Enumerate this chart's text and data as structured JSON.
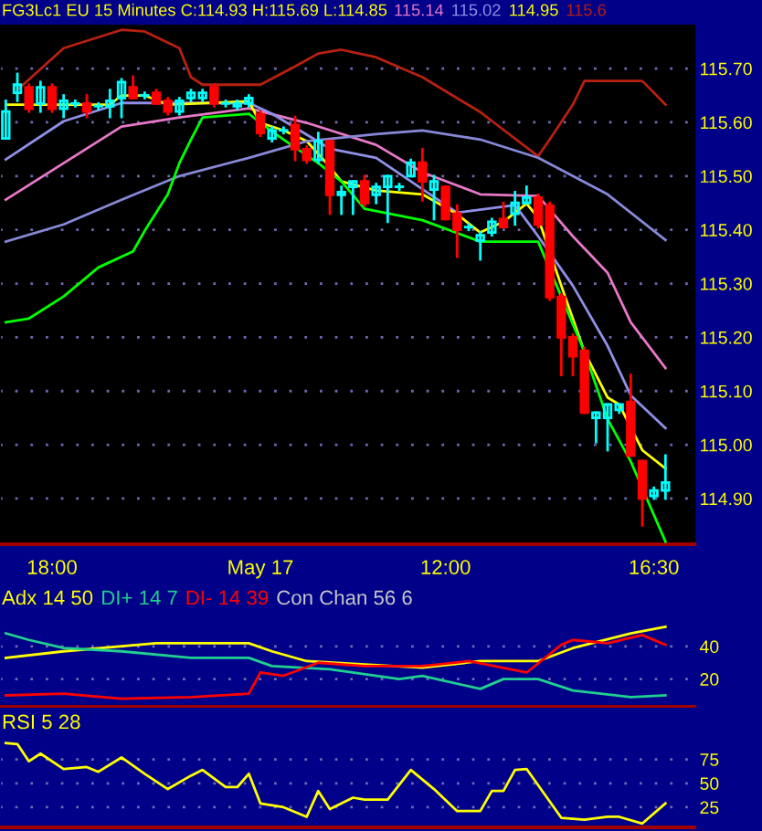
{
  "chart_data": [
    {
      "type": "candlestick",
      "title": "FG3Lc1 EU 15 Minutes C:114.93 H:115.69 L:114.85",
      "categories": [
        null,
        null,
        null,
        null,
        "18:00",
        null,
        null,
        null,
        null,
        null,
        null,
        null,
        null,
        null,
        null,
        null,
        null,
        null,
        null,
        null,
        null,
        null,
        "May 17",
        null,
        null,
        null,
        null,
        null,
        null,
        null,
        null,
        null,
        null,
        null,
        null,
        null,
        null,
        null,
        "12:00",
        null,
        null,
        null,
        null,
        null,
        null,
        null,
        null,
        null,
        null,
        null,
        null,
        null,
        null,
        null,
        null,
        null,
        "16:30",
        null
      ],
      "ohlc": [
        [
          115.57,
          115.64,
          115.57,
          115.62
        ],
        [
          115.655,
          115.69,
          115.64,
          115.67
        ],
        [
          115.665,
          115.67,
          115.62,
          115.625
        ],
        [
          115.635,
          115.675,
          115.62,
          115.665
        ],
        [
          115.665,
          115.67,
          115.62,
          115.625
        ],
        [
          115.625,
          115.65,
          115.61,
          115.64
        ],
        [
          115.635,
          115.64,
          115.63,
          115.635
        ],
        [
          115.635,
          115.65,
          115.61,
          115.62
        ],
        [
          115.63,
          115.635,
          115.625,
          115.63
        ],
        [
          115.63,
          115.66,
          115.61,
          115.64
        ],
        [
          115.645,
          115.68,
          115.61,
          115.675
        ],
        [
          115.665,
          115.685,
          115.645,
          115.645
        ],
        [
          115.65,
          115.655,
          115.645,
          115.65
        ],
        [
          115.655,
          115.66,
          115.635,
          115.635
        ],
        [
          115.64,
          115.645,
          115.615,
          115.62
        ],
        [
          115.62,
          115.645,
          115.615,
          115.64
        ],
        [
          115.645,
          115.66,
          115.64,
          115.655
        ],
        [
          115.645,
          115.66,
          115.64,
          115.655
        ],
        [
          115.665,
          115.67,
          115.63,
          115.635
        ],
        [
          115.635,
          115.64,
          115.63,
          115.635
        ],
        [
          115.63,
          115.64,
          115.625,
          115.635
        ],
        [
          115.635,
          115.65,
          115.63,
          115.645
        ],
        [
          115.615,
          115.62,
          115.575,
          115.58
        ],
        [
          115.57,
          115.59,
          115.565,
          115.585
        ],
        [
          115.585,
          115.59,
          115.58,
          115.585
        ],
        [
          115.595,
          115.61,
          115.53,
          115.55
        ],
        [
          115.55,
          115.555,
          115.525,
          115.53
        ],
        [
          115.53,
          115.58,
          115.525,
          115.565
        ],
        [
          115.565,
          115.565,
          115.43,
          115.465
        ],
        [
          115.465,
          115.48,
          115.43,
          115.47
        ],
        [
          115.48,
          115.49,
          115.43,
          115.49
        ],
        [
          115.49,
          115.5,
          115.445,
          115.45
        ],
        [
          115.465,
          115.485,
          115.45,
          115.48
        ],
        [
          115.48,
          115.5,
          115.415,
          115.5
        ],
        [
          115.48,
          115.485,
          115.475,
          115.48
        ],
        [
          115.5,
          115.53,
          115.5,
          115.525
        ],
        [
          115.525,
          115.55,
          115.455,
          115.49
        ],
        [
          115.475,
          115.5,
          115.42,
          115.49
        ],
        [
          115.48,
          115.48,
          115.42,
          115.42
        ],
        [
          115.43,
          115.445,
          115.35,
          115.4
        ],
        [
          115.405,
          115.41,
          115.4,
          115.405
        ],
        [
          115.38,
          115.395,
          115.345,
          115.39
        ],
        [
          115.395,
          115.42,
          115.39,
          115.415
        ],
        [
          115.42,
          115.45,
          115.405,
          115.405
        ],
        [
          115.43,
          115.47,
          115.41,
          115.45
        ],
        [
          115.45,
          115.48,
          115.45,
          115.46
        ],
        [
          115.46,
          115.465,
          115.405,
          115.41
        ],
        [
          115.445,
          115.45,
          115.27,
          115.275
        ],
        [
          115.275,
          115.28,
          115.13,
          115.2
        ],
        [
          115.2,
          115.205,
          115.13,
          115.165
        ],
        [
          115.175,
          115.18,
          115.06,
          115.06
        ],
        [
          115.05,
          115.06,
          115.005,
          115.06
        ],
        [
          115.05,
          115.075,
          114.99,
          115.075
        ],
        [
          115.065,
          115.075,
          115.06,
          115.075
        ],
        [
          115.08,
          115.13,
          114.98,
          114.98
        ],
        [
          114.97,
          114.97,
          114.85,
          114.9
        ],
        [
          114.905,
          114.92,
          114.9,
          114.915
        ],
        [
          114.915,
          114.98,
          114.9,
          114.93
        ]
      ],
      "colors": [
        "#00ffff",
        "#00ffff",
        "#ff0000",
        "#00ffff",
        "#ff0000",
        "#00ffff",
        "#00ffff",
        "#ff0000",
        "#00ffff",
        "#00ffff",
        "#00ffff",
        "#ff0000",
        "#00ffff",
        "#ff0000",
        "#ff0000",
        "#00ffff",
        "#00ffff",
        "#00ffff",
        "#ff0000",
        "#00ffff",
        "#00ffff",
        "#00ffff",
        "#ff0000",
        "#00ffff",
        "#00ffff",
        "#ff0000",
        "#ff0000",
        "#00ffff",
        "#ff0000",
        "#00ffff",
        "#00ffff",
        "#ff0000",
        "#00ffff",
        "#00ffff",
        "#00ffff",
        "#00ffff",
        "#ff0000",
        "#00ffff",
        "#ff0000",
        "#ff0000",
        "#00ffff",
        "#00ffff",
        "#00ffff",
        "#ff0000",
        "#00ffff",
        "#00ffff",
        "#ff0000",
        "#ff0000",
        "#ff0000",
        "#ff0000",
        "#ff0000",
        "#00ffff",
        "#00ffff",
        "#00ffff",
        "#ff0000",
        "#ff0000",
        "#00ffff",
        "#00ffff"
      ],
      "series": [
        {
          "type": "line",
          "name": "115.14",
          "color": "#e878c8",
          "values": [
            115.456,
            null,
            null,
            null,
            null,
            115.524,
            null,
            null,
            115.565,
            null,
            115.592,
            null,
            null,
            null,
            null,
            115.609,
            null,
            null,
            null,
            null,
            null,
            115.626,
            null,
            null,
            null,
            null,
            115.599,
            null,
            null,
            null,
            null,
            null,
            115.558,
            null,
            null,
            null,
            115.507,
            null,
            null,
            null,
            null,
            115.466,
            null,
            null,
            null,
            null,
            115.463,
            null,
            null,
            115.388,
            null,
            null,
            115.32,
            null,
            115.228,
            null,
            null,
            115.143
          ]
        },
        {
          "type": "line",
          "name": "115.02",
          "color": "#9090e8",
          "values": [
            115.531,
            null,
            null,
            null,
            null,
            115.602,
            null,
            null,
            null,
            null,
            115.636,
            null,
            null,
            null,
            null,
            null,
            null,
            null,
            null,
            null,
            null,
            115.636,
            null,
            115.616,
            null,
            null,
            null,
            null,
            115.551,
            null,
            null,
            null,
            115.534,
            null,
            null,
            null,
            null,
            null,
            null,
            115.432,
            null,
            null,
            null,
            null,
            115.446,
            null,
            115.388,
            null,
            null,
            115.296,
            null,
            null,
            115.184,
            null,
            115.092,
            null,
            null,
            115.031
          ]
        },
        {
          "type": "line",
          "name": "114.95",
          "color": "#ffff00",
          "values": [
            115.633,
            null,
            null,
            null,
            null,
            115.633,
            null,
            null,
            null,
            115.633,
            115.65,
            null,
            115.65,
            null,
            115.633,
            null,
            null,
            null,
            null,
            null,
            null,
            115.639,
            115.599,
            null,
            115.585,
            null,
            115.565,
            null,
            115.517,
            115.49,
            null,
            null,
            115.473,
            null,
            null,
            null,
            115.466,
            null,
            null,
            115.429,
            null,
            115.395,
            null,
            115.415,
            null,
            115.449,
            115.422,
            null,
            115.296,
            null,
            115.173,
            null,
            115.088,
            115.075,
            null,
            114.99,
            null,
            114.956
          ]
        },
        {
          "type": "line",
          "name": "115.6",
          "color": "#b82010",
          "values": [
            null,
            115.66,
            null,
            null,
            null,
            115.738,
            null,
            null,
            null,
            null,
            115.772,
            null,
            115.769,
            null,
            null,
            115.738,
            115.684,
            115.67,
            null,
            null,
            null,
            null,
            115.67,
            null,
            null,
            115.704,
            null,
            115.728,
            null,
            115.735,
            null,
            null,
            115.721,
            null,
            null,
            null,
            115.684,
            null,
            null,
            null,
            null,
            115.619,
            null,
            null,
            null,
            null,
            115.537,
            115.568,
            null,
            115.633,
            115.677,
            null,
            null,
            null,
            null,
            115.677,
            null,
            115.633
          ]
        },
        {
          "type": "line",
          "color": "#8888d8",
          "values": [
            115.378,
            null,
            null,
            null,
            null,
            115.41,
            null,
            null,
            null,
            null,
            115.456,
            null,
            null,
            null,
            null,
            115.5,
            null,
            null,
            null,
            null,
            null,
            115.534,
            null,
            null,
            null,
            null,
            115.565,
            null,
            null,
            null,
            null,
            null,
            115.578,
            null,
            null,
            null,
            115.585,
            null,
            null,
            null,
            null,
            115.568,
            null,
            null,
            null,
            null,
            115.534,
            null,
            null,
            null,
            null,
            null,
            115.466,
            null,
            null,
            null,
            null,
            115.381
          ]
        },
        {
          "type": "line",
          "color": "#00ff00",
          "values": [
            115.228,
            null,
            115.235,
            null,
            null,
            115.276,
            null,
            null,
            115.33,
            null,
            null,
            115.36,
            115.398,
            null,
            115.466,
            115.524,
            115.568,
            115.609,
            null,
            null,
            null,
            115.616,
            115.599,
            null,
            115.568,
            null,
            null,
            115.524,
            null,
            115.49,
            null,
            115.439,
            null,
            null,
            null,
            null,
            115.418,
            null,
            null,
            null,
            null,
            115.378,
            null,
            null,
            null,
            null,
            115.378,
            null,
            null,
            null,
            115.173,
            null,
            115.048,
            null,
            114.969,
            null,
            null,
            114.82
          ]
        }
      ],
      "ylim": [
        114.815,
        115.78
      ],
      "yticks": [
        {
          "value": 114.9,
          "label": "114.90"
        },
        {
          "value": 115.0,
          "label": "115.00"
        },
        {
          "value": 115.1,
          "label": "115.10"
        },
        {
          "value": 115.2,
          "label": "115.20"
        },
        {
          "value": 115.3,
          "label": "115.30"
        },
        {
          "value": 115.4,
          "label": "115.40"
        },
        {
          "value": 115.5,
          "label": "115.50"
        },
        {
          "value": 115.6,
          "label": "115.60"
        },
        {
          "value": 115.7,
          "label": "115.70"
        }
      ],
      "grid": "y"
    },
    {
      "type": "line",
      "tick_labels": "y",
      "annotations": [
        "Con Chan 56 6"
      ],
      "categories": [
        null,
        null,
        null,
        null,
        null,
        null,
        null,
        null,
        null,
        null,
        null,
        null,
        null,
        null,
        null,
        null,
        null,
        null,
        null,
        null,
        null,
        null,
        null,
        null,
        null,
        null,
        null,
        null,
        null,
        null,
        null,
        null,
        null,
        null,
        null,
        null,
        null,
        null,
        null,
        null,
        null,
        null,
        null,
        null,
        null,
        null,
        null,
        null,
        null,
        null,
        null,
        null,
        null,
        null,
        null,
        null,
        null,
        null
      ],
      "series": [
        {
          "name": "Adx 14 50",
          "color": "#ffff00",
          "values": [
            33,
            null,
            null,
            null,
            null,
            37,
            null,
            null,
            null,
            null,
            null,
            null,
            null,
            42,
            null,
            null,
            null,
            null,
            null,
            null,
            null,
            42,
            null,
            37,
            null,
            null,
            31,
            null,
            null,
            null,
            null,
            29,
            null,
            null,
            null,
            null,
            27,
            null,
            null,
            null,
            null,
            31,
            null,
            null,
            null,
            null,
            31,
            null,
            null,
            39,
            null,
            null,
            null,
            null,
            48,
            null,
            null,
            52
          ]
        },
        {
          "name": "DI+ 14 7",
          "color": "#20d090",
          "values": [
            48,
            null,
            44,
            null,
            null,
            39,
            null,
            null,
            null,
            null,
            37,
            null,
            null,
            null,
            null,
            null,
            33,
            null,
            null,
            null,
            null,
            33,
            null,
            28,
            null,
            null,
            null,
            null,
            26,
            null,
            null,
            null,
            null,
            null,
            20,
            null,
            22,
            null,
            null,
            null,
            null,
            14,
            null,
            20,
            null,
            null,
            20,
            null,
            null,
            13,
            null,
            null,
            null,
            null,
            9,
            null,
            null,
            10
          ]
        },
        {
          "name": "DI- 14 39",
          "color": "#ff0000",
          "values": [
            10,
            null,
            null,
            null,
            null,
            11,
            null,
            null,
            null,
            null,
            8,
            null,
            null,
            null,
            null,
            null,
            9,
            null,
            null,
            null,
            null,
            11,
            24,
            null,
            22,
            null,
            null,
            30,
            null,
            null,
            null,
            28,
            null,
            null,
            null,
            null,
            28,
            null,
            null,
            null,
            31,
            null,
            null,
            null,
            null,
            24,
            null,
            null,
            41,
            44,
            null,
            null,
            42,
            null,
            null,
            47,
            null,
            41
          ]
        }
      ],
      "ylim": [
        3,
        78
      ],
      "yticks": [
        20,
        40
      ],
      "grid": "y"
    },
    {
      "type": "line",
      "tick_labels": "y",
      "categories": [
        null,
        null,
        null,
        null,
        null,
        null,
        null,
        null,
        null,
        null,
        null,
        null,
        null,
        null,
        null,
        null,
        null,
        null,
        null,
        null,
        null,
        null,
        null,
        null,
        null,
        null,
        null,
        null,
        null,
        null,
        null,
        null,
        null,
        null,
        null,
        null,
        null,
        null,
        null,
        null,
        null,
        null,
        null,
        null,
        null,
        null,
        null,
        null,
        null,
        null,
        null,
        null,
        null,
        null,
        null,
        null,
        null,
        null
      ],
      "series": [
        {
          "name": "RSI 5 28",
          "color": "#ffff00",
          "values": [
            92,
            91,
            73,
            81,
            null,
            65,
            null,
            67,
            62,
            null,
            77,
            null,
            60,
            null,
            44,
            null,
            58,
            64,
            null,
            46,
            46,
            60,
            29,
            null,
            25,
            null,
            15,
            42,
            23,
            null,
            35,
            33,
            null,
            33,
            null,
            64,
            null,
            44,
            null,
            21,
            null,
            21,
            42,
            42,
            64,
            65,
            null,
            null,
            14,
            null,
            12,
            null,
            15,
            15,
            null,
            8,
            null,
            29
          ]
        }
      ],
      "ylim": [
        4,
        128
      ],
      "yticks": [
        25,
        50,
        75
      ],
      "grid": "y"
    }
  ]
}
